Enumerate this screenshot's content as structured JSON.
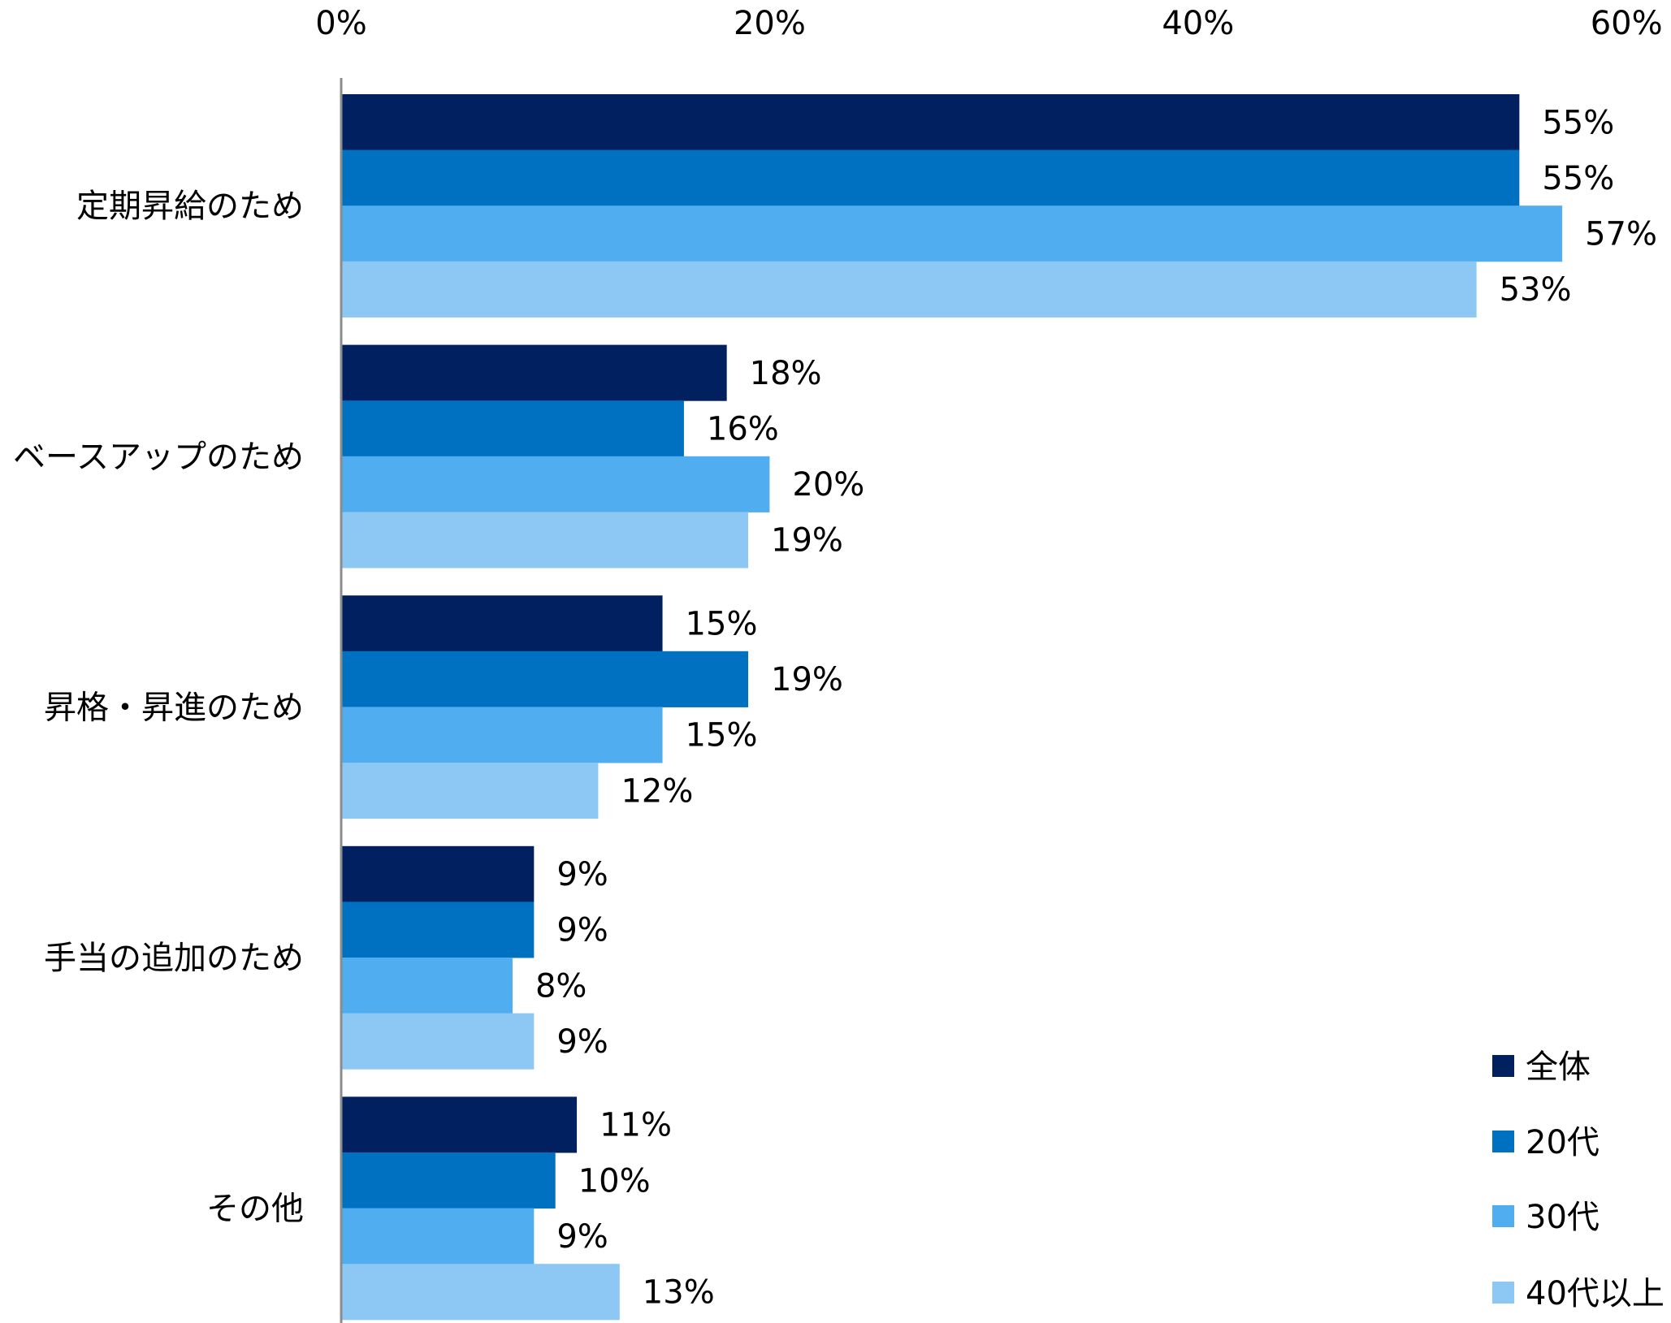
{
  "chart_data": {
    "type": "bar",
    "orientation": "horizontal",
    "categories": [
      "定期昇給のため",
      "ベースアップのため",
      "昇格・昇進のため",
      "手当の追加のため",
      "その他"
    ],
    "series": [
      {
        "name": "全体",
        "color": "#002060",
        "values": [
          55,
          18,
          15,
          9,
          11
        ]
      },
      {
        "name": "20代",
        "color": "#0070C0",
        "values": [
          55,
          16,
          19,
          9,
          10
        ]
      },
      {
        "name": "30代",
        "color": "#4FADF0",
        "values": [
          57,
          20,
          15,
          8,
          9
        ]
      },
      {
        "name": "40代以上",
        "color": "#8DC8F4",
        "values": [
          53,
          19,
          12,
          9,
          13
        ]
      }
    ],
    "xlim": [
      0,
      60
    ],
    "xticks": [
      "0%",
      "20%",
      "40%",
      "60%"
    ],
    "tick_values": [
      0,
      20,
      40,
      60
    ],
    "axis_position": "top",
    "value_suffix": "%",
    "grid": false,
    "legend_placement": "bottom-right",
    "title": "",
    "xlabel": "",
    "ylabel": ""
  }
}
